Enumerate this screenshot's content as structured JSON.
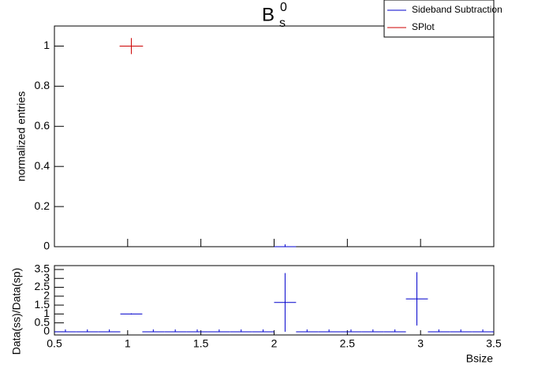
{
  "chart_data": [
    {
      "type": "scatter",
      "title": {
        "base": "B",
        "sup": "0",
        "sub": "s"
      },
      "ylabel": "normalized entries",
      "xlim": [
        0.5,
        3.5
      ],
      "xticks": [
        0.5,
        1,
        1.5,
        2,
        2.5,
        3,
        3.5
      ],
      "ylim": [
        0,
        1.1
      ],
      "yticks": [
        0,
        0.2,
        0.4,
        0.6,
        0.8,
        1
      ],
      "legend": "top-right",
      "series": [
        {
          "name": "Sideband Subtraction",
          "color": "#0000cc",
          "x": [
            2.075
          ],
          "values": [
            0
          ],
          "xerr": [
            0.075
          ],
          "yerr": [
            0
          ]
        },
        {
          "name": "SPlot",
          "color": "#cc0000",
          "x": [
            1.025
          ],
          "values": [
            1
          ],
          "xerr": [
            0.08
          ],
          "yerr": [
            0.04
          ]
        }
      ]
    },
    {
      "type": "scatter",
      "xlabel": "Bsize",
      "ylabel": "Data(ss)/Data(sp)",
      "xlim": [
        0.5,
        3.5
      ],
      "xticks": [
        0.5,
        1,
        1.5,
        2,
        2.5,
        3,
        3.5
      ],
      "ylim": [
        -0.18,
        3.72
      ],
      "yticks": [
        0,
        0.5,
        1,
        1.5,
        2,
        2.5,
        3,
        3.5
      ],
      "series": [
        {
          "color": "#0000cc",
          "x": [
            0.575,
            0.725,
            0.875,
            1.025,
            1.175,
            1.325,
            1.475,
            1.625,
            1.775,
            1.925,
            2.075,
            2.225,
            2.375,
            2.525,
            2.675,
            2.825,
            2.975,
            3.125,
            3.275,
            3.425
          ],
          "values": [
            0,
            0,
            0,
            1,
            0,
            0,
            0,
            0,
            0,
            0,
            1.65,
            0,
            0,
            0,
            0,
            0,
            1.85,
            0,
            0,
            0
          ],
          "xerr": [
            0.075,
            0.075,
            0.075,
            0.075,
            0.075,
            0.075,
            0.075,
            0.075,
            0.075,
            0.075,
            0.075,
            0.075,
            0.075,
            0.075,
            0.075,
            0.075,
            0.075,
            0.075,
            0.075,
            0.075
          ],
          "yerr": [
            0,
            0,
            0,
            0.03,
            0,
            0,
            0,
            0,
            0,
            0,
            1.65,
            0,
            0,
            0,
            0,
            0,
            1.5,
            0,
            0,
            0
          ]
        }
      ]
    }
  ]
}
